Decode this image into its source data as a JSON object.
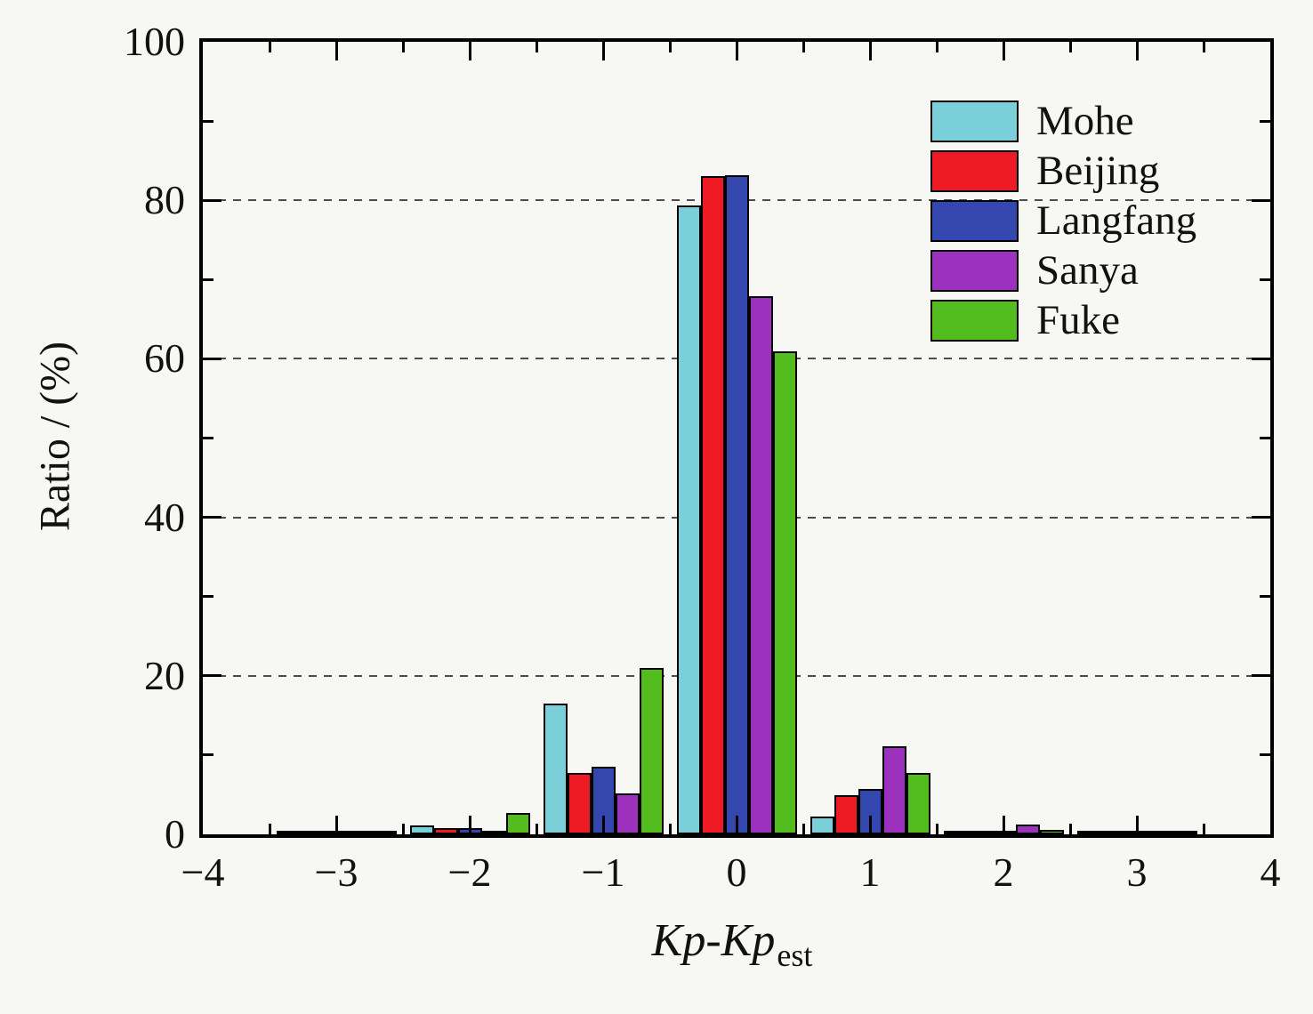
{
  "chart_data": {
    "type": "bar",
    "title": "",
    "xlabel": "Kp-Kp_est",
    "xlabel_main": "Kp-Kp",
    "xlabel_sub": "est",
    "ylabel": "Ratio / (%)",
    "xlim": [
      -4,
      4
    ],
    "ylim": [
      0,
      100
    ],
    "grid": "dashed-horizontal",
    "gridlines_y": [
      20,
      40,
      60,
      80
    ],
    "x_major_ticks": [
      -4,
      -3,
      -2,
      -1,
      0,
      1,
      2,
      3,
      4
    ],
    "x_minor_step": 0.5,
    "y_major_ticks": [
      0,
      20,
      40,
      60,
      80,
      100
    ],
    "y_minor_ticks": [
      10,
      30,
      50,
      70,
      90
    ],
    "x_tick_labels": [
      "−4",
      "−3",
      "−2",
      "−1",
      "0",
      "1",
      "2",
      "3",
      "4"
    ],
    "y_tick_labels": [
      "0",
      "20",
      "40",
      "60",
      "80",
      "100"
    ],
    "categories": [
      -3,
      -2,
      -1,
      0,
      1,
      2,
      3
    ],
    "series": [
      {
        "name": "Mohe",
        "color": "#7ACFD9",
        "values": [
          0.1,
          1.1,
          16.5,
          79.3,
          2.3,
          0.2,
          0.1
        ]
      },
      {
        "name": "Beijing",
        "color": "#EE1B24",
        "values": [
          0.1,
          0.8,
          7.8,
          83.0,
          4.9,
          0.3,
          0.1
        ]
      },
      {
        "name": "Langfang",
        "color": "#3347AE",
        "values": [
          0.1,
          0.8,
          8.5,
          83.2,
          5.7,
          0.3,
          0.1
        ]
      },
      {
        "name": "Sanya",
        "color": "#9C31BE",
        "values": [
          0.1,
          0.4,
          5.2,
          67.9,
          11.1,
          1.2,
          0.1
        ]
      },
      {
        "name": "Fuke",
        "color": "#53BD20",
        "values": [
          0.1,
          2.7,
          21.0,
          61.0,
          7.7,
          0.6,
          0.1
        ]
      }
    ],
    "legend": {
      "position": "top-right",
      "entries": [
        "Mohe",
        "Beijing",
        "Langfang",
        "Sanya",
        "Fuke"
      ]
    },
    "colors": {
      "background": "#f7f7f4",
      "axis": "#000000",
      "gridline": "#4c4c4c",
      "bar_outline": "#000000"
    }
  }
}
